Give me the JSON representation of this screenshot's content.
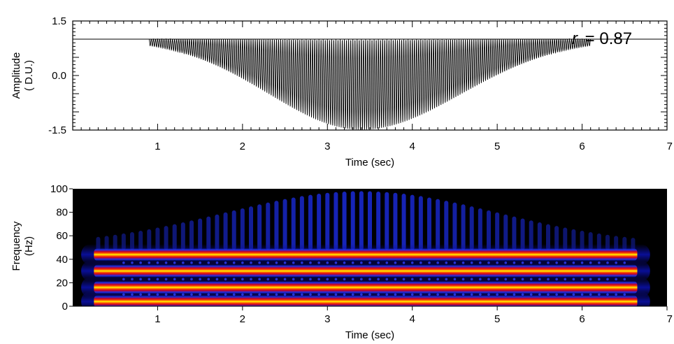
{
  "chart_data": [
    {
      "type": "line",
      "name": "waveform",
      "xlabel": "Time (sec)",
      "ylabel_line1": "Amplitude",
      "ylabel_line2": "( D.U.)",
      "xlim": [
        0,
        7
      ],
      "ylim": [
        -1.5,
        1.5
      ],
      "x_tick_labels": [
        "1",
        "2",
        "3",
        "4",
        "5",
        "6",
        "7"
      ],
      "y_tick_labels": [
        "1.5",
        "0.0",
        "-1.5"
      ],
      "annotation_var": "r",
      "annotation_value": "= 0.87",
      "signal": {
        "frequency_hz": 40,
        "baseline": 1.0,
        "onset_sec": 0.9,
        "offset_sec": 6.1,
        "peak_time_sec": 3.4,
        "peak_amplitude": 1.25
      }
    },
    {
      "type": "heatmap",
      "name": "spectrogram",
      "xlabel": "Time (sec)",
      "ylabel_line1": "Frequency",
      "ylabel_line2": "(Hz)",
      "xlim": [
        0,
        7
      ],
      "ylim": [
        0,
        100
      ],
      "x_tick_labels": [
        "1",
        "2",
        "3",
        "4",
        "5",
        "6",
        "7"
      ],
      "y_tick_labels": [
        "100",
        "80",
        "60",
        "40",
        "20",
        "0"
      ],
      "bands_hz": [
        4,
        16,
        30,
        44
      ],
      "time_range_sec": [
        0.1,
        6.8
      ],
      "colormap": [
        "#000000",
        "#0a0a9a",
        "#3a48ff",
        "#d4001e",
        "#ff6a00",
        "#ffd400",
        "#9aff3a"
      ]
    }
  ]
}
